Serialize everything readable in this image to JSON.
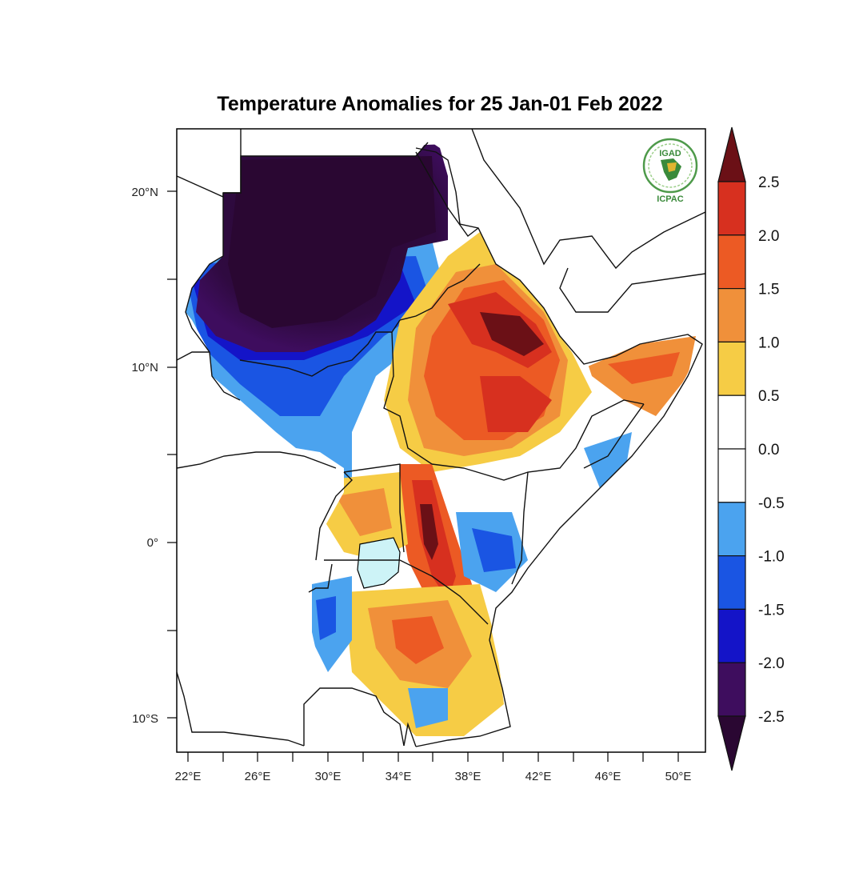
{
  "title": "Temperature Anomalies for 25 Jan-01 Feb 2022",
  "logo": {
    "top_text": "IGAD",
    "bottom_text": "ICPAC",
    "icon": "africa-emblem-icon"
  },
  "axes": {
    "lat_labels": [
      "20°N",
      "10°N",
      "0°",
      "10°S"
    ],
    "lon_labels": [
      "22°E",
      "26°E",
      "30°E",
      "34°E",
      "38°E",
      "42°E",
      "46°E",
      "50°E"
    ]
  },
  "colorbar": {
    "labels": [
      "2.5",
      "2.0",
      "1.5",
      "1.0",
      "0.5",
      "0.0",
      "-0.5",
      "-1.0",
      "-1.5",
      "-2.0",
      "-2.5"
    ],
    "colors": {
      "gt_2_5": "#6b1016",
      "c_2_0_2_5": "#d7301f",
      "c_1_5_2_0": "#ec5a24",
      "c_1_0_1_5": "#f0903a",
      "c_0_5_1_0": "#f6cc45",
      "c_0_0_0_5": "#ffffff",
      "c_m0_5_0_0": "#ffffff",
      "c_m1_0_m0_5": "#4ba3ef",
      "c_m1_5_m1_0": "#1a55e3",
      "c_m2_0_m1_5": "#1414c8",
      "c_m2_5_m2_0": "#3e0d5e",
      "lt_m2_5": "#2a0732"
    }
  }
}
